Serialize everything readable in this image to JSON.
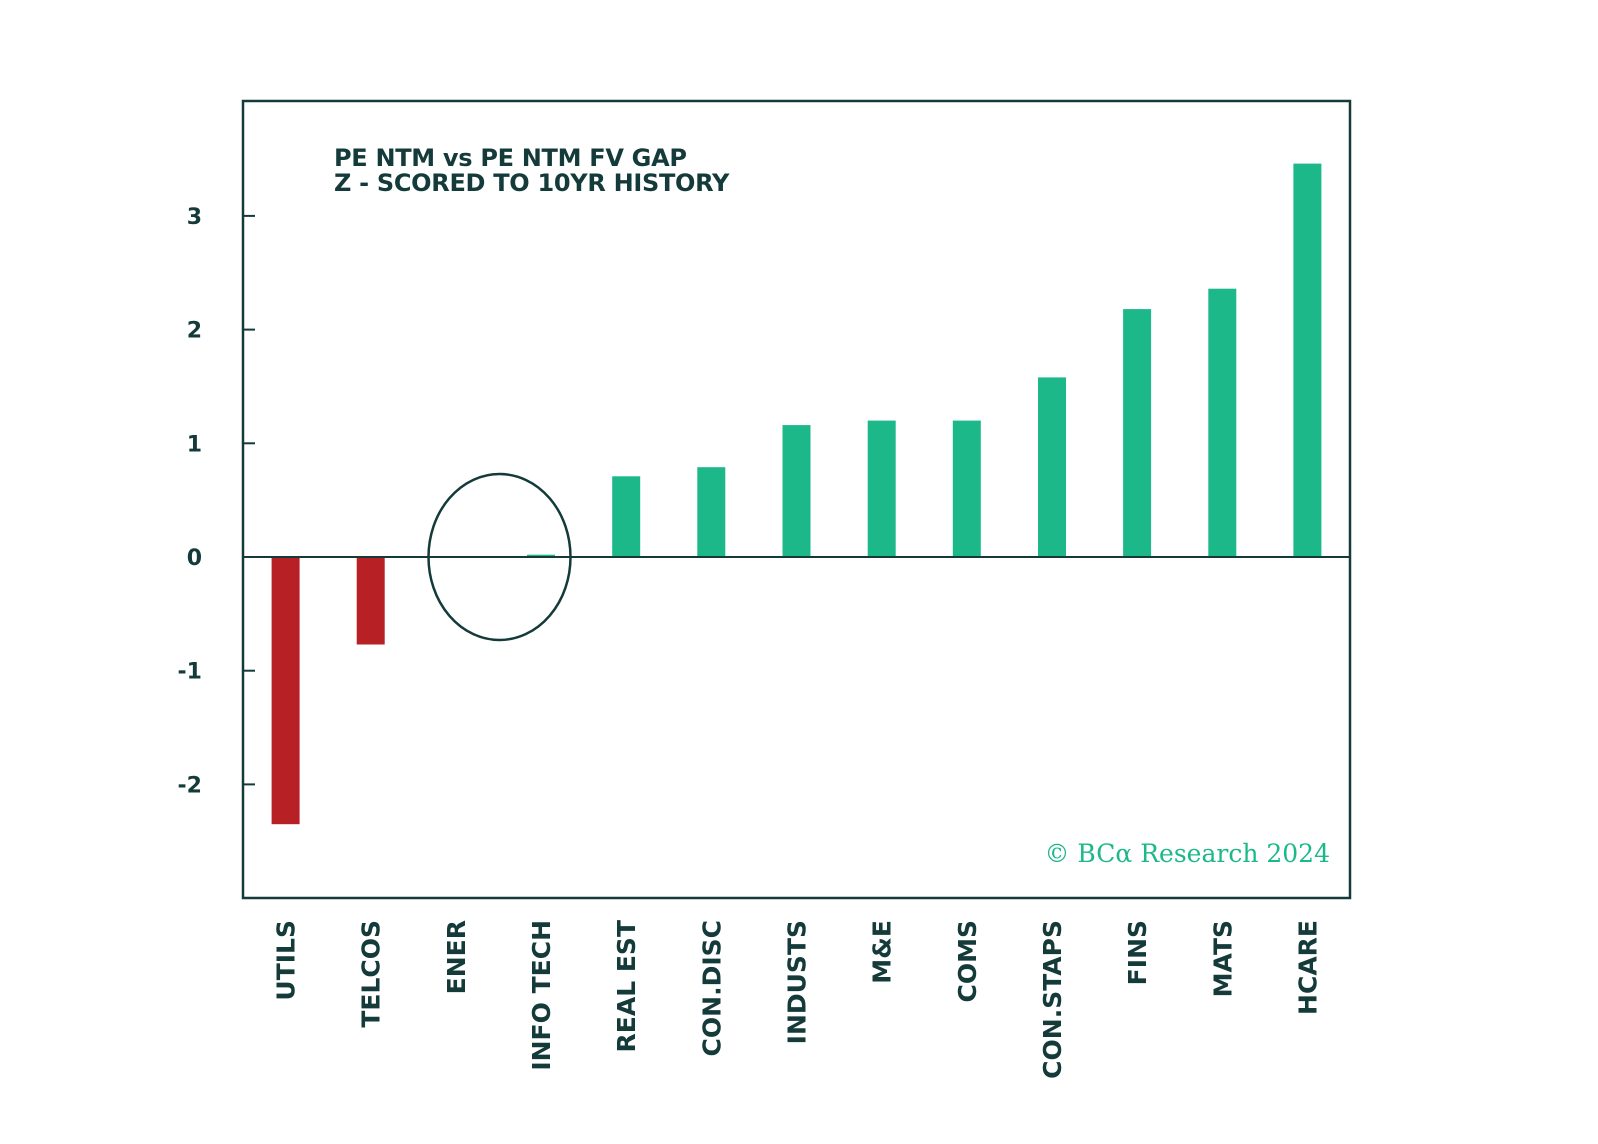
{
  "chart_data": {
    "type": "bar",
    "title_lines": [
      "PE NTM vs PE NTM FV GAP",
      "Z - SCORED TO 10YR HISTORY"
    ],
    "categories": [
      "UTILS",
      "TELCOS",
      "ENER",
      "INFO TECH",
      "REAL EST",
      "CON.DISC",
      "INDUSTS",
      "M&E",
      "COMS",
      "CON.STAPS",
      "FINS",
      "MATS",
      "HCARE"
    ],
    "values": [
      -2.35,
      -0.77,
      0.0,
      0.02,
      0.71,
      0.79,
      1.16,
      1.2,
      1.2,
      1.58,
      2.18,
      2.36,
      3.46
    ],
    "ylim": [
      -2.95,
      4.0
    ],
    "yticks": [
      3,
      2,
      1,
      0,
      -1,
      -2
    ],
    "ytick_labels": [
      "3",
      "2",
      "1",
      "0",
      "-1",
      "-2"
    ],
    "xlabel": "",
    "ylabel": "",
    "grid": false,
    "highlight": {
      "shape": "ellipse",
      "categories": [
        "ENER",
        "INFO TECH"
      ]
    },
    "colors": {
      "positive": "#1cb88a",
      "negative": "#b72126",
      "axis": "#143a3a",
      "text": "#143a3a"
    },
    "source": "© BCα Research 2024"
  }
}
